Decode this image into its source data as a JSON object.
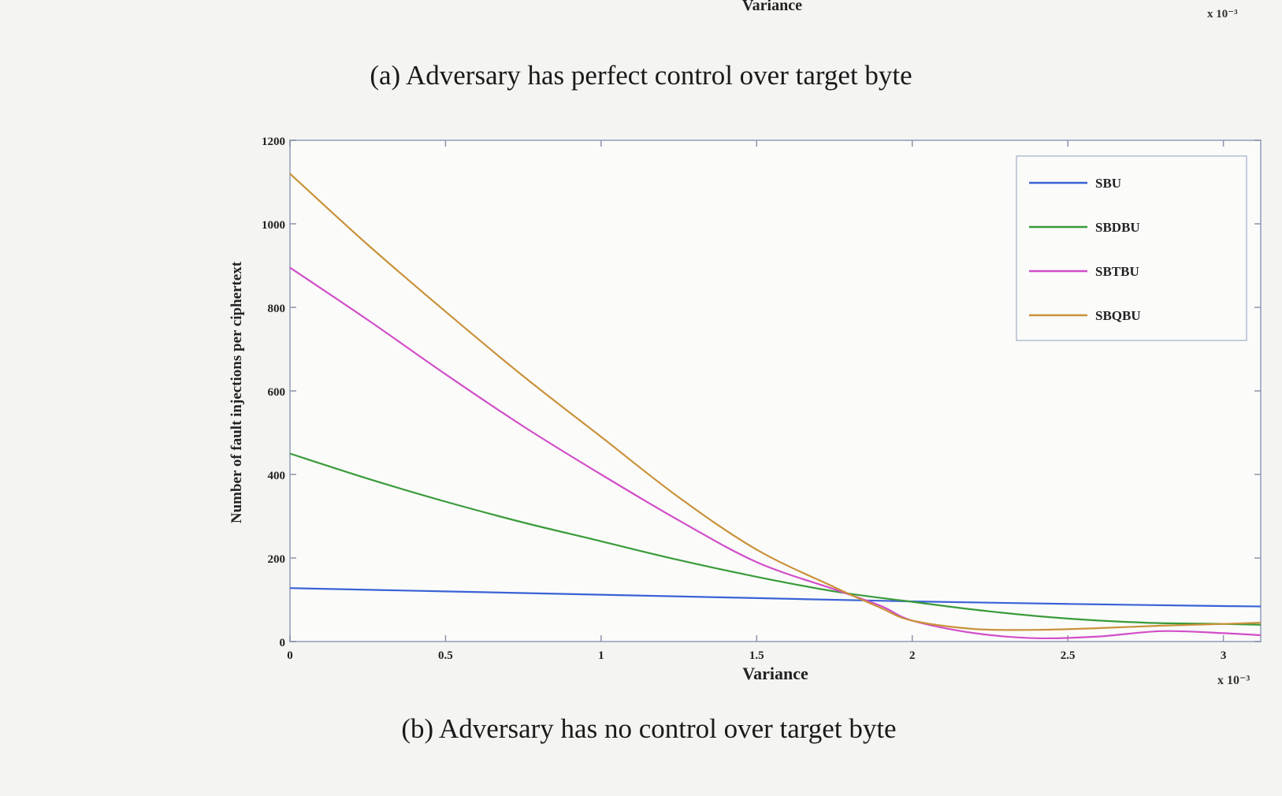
{
  "top_fragment": {
    "xlabel": "Variance",
    "exponent": "x 10⁻³"
  },
  "captions": {
    "a": "(a) Adversary has perfect control over target byte",
    "b": "(b) Adversary has no control over target byte"
  },
  "chart_data": {
    "type": "line",
    "title": "",
    "xlabel": "Variance",
    "ylabel": "Number of fault injections per ciphertext",
    "x_exponent_label": "x 10⁻³",
    "xlim": [
      0,
      3.12
    ],
    "ylim": [
      0,
      1200
    ],
    "xticks": [
      0,
      0.5,
      1,
      1.5,
      2,
      2.5,
      3
    ],
    "xtick_labels": [
      "0",
      "0.5",
      "1",
      "1.5",
      "2",
      "2.5",
      "3"
    ],
    "yticks": [
      0,
      200,
      400,
      600,
      800,
      1000,
      1200
    ],
    "ytick_labels": [
      "0",
      "200",
      "400",
      "600",
      "800",
      "1000",
      "1200"
    ],
    "grid": false,
    "legend_position": "top-right",
    "series": [
      {
        "name": "SBU",
        "color": "#3b62d6",
        "x": [
          0,
          0.5,
          1,
          1.5,
          2,
          2.5,
          3,
          3.12
        ],
        "y": [
          128,
          120,
          112,
          104,
          96,
          90,
          85,
          84
        ]
      },
      {
        "name": "SBDBU",
        "color": "#3a9b3a",
        "x": [
          0,
          0.25,
          0.5,
          0.75,
          1,
          1.25,
          1.5,
          1.75,
          2,
          2.25,
          2.5,
          2.75,
          3,
          3.12
        ],
        "y": [
          450,
          390,
          335,
          285,
          240,
          195,
          155,
          120,
          95,
          72,
          55,
          45,
          42,
          40
        ]
      },
      {
        "name": "SBTBU",
        "color": "#d24ec8",
        "x": [
          0,
          0.25,
          0.5,
          0.75,
          1,
          1.25,
          1.5,
          1.75,
          1.9,
          2,
          2.2,
          2.4,
          2.6,
          2.8,
          3,
          3.12
        ],
        "y": [
          895,
          770,
          640,
          515,
          400,
          290,
          190,
          125,
          85,
          50,
          20,
          8,
          12,
          25,
          20,
          15
        ]
      },
      {
        "name": "SBQBU",
        "color": "#c9923a",
        "x": [
          0,
          0.25,
          0.5,
          0.75,
          1,
          1.25,
          1.5,
          1.75,
          1.9,
          2,
          2.2,
          2.4,
          2.6,
          2.8,
          3,
          3.12
        ],
        "y": [
          1120,
          950,
          790,
          635,
          490,
          345,
          220,
          130,
          80,
          50,
          30,
          28,
          32,
          38,
          42,
          45
        ]
      }
    ]
  }
}
